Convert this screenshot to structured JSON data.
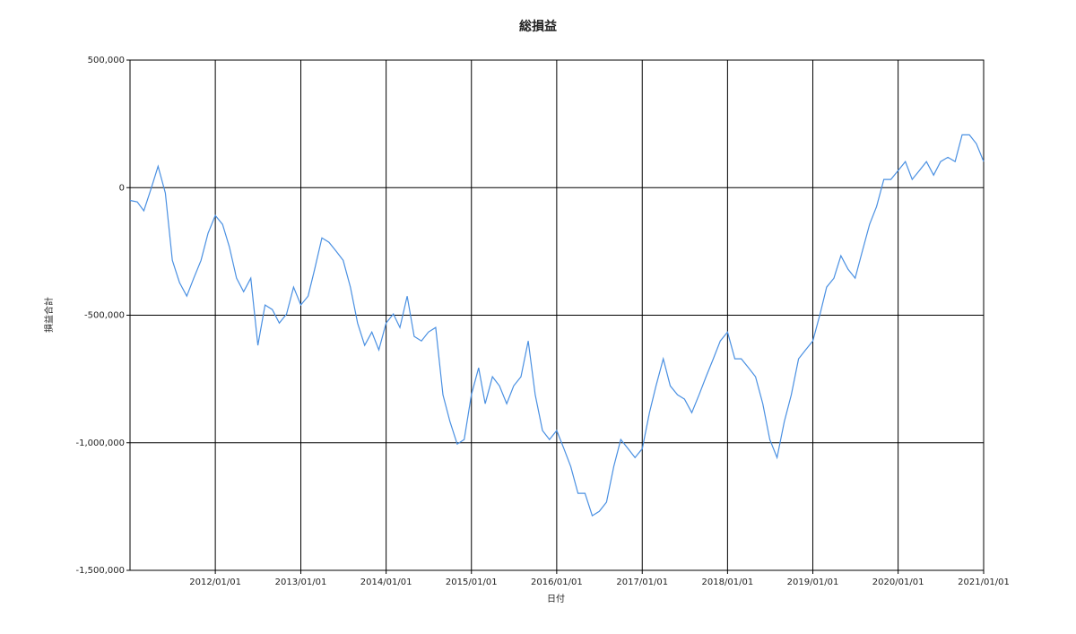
{
  "chart_data": {
    "type": "line",
    "title": "総損益",
    "x_label": "日付",
    "y_label": "損益合計",
    "xlim": [
      "2011/01/01",
      "2021/01/01"
    ],
    "xticks": [
      "2012/01/01",
      "2013/01/01",
      "2014/01/01",
      "2015/01/01",
      "2016/01/01",
      "2017/01/01",
      "2018/01/01",
      "2019/01/01",
      "2020/01/01",
      "2021/01/01"
    ],
    "ylim": [
      -1500000,
      500000
    ],
    "yticks": [
      {
        "value": -1500000,
        "label": "-1,500,000"
      },
      {
        "value": -1000000,
        "label": "-1,000,000"
      },
      {
        "value": -500000,
        "label": "-500,000"
      },
      0,
      {
        "value": 500000,
        "label": "500,000"
      }
    ],
    "grid": true,
    "x": [
      "2011/01/01",
      "2011/02/01",
      "2011/03/01",
      "2011/04/01",
      "2011/05/01",
      "2011/06/01",
      "2011/07/01",
      "2011/08/01",
      "2011/09/01",
      "2011/10/01",
      "2011/11/01",
      "2011/12/01",
      "2012/01/01",
      "2012/02/01",
      "2012/03/01",
      "2012/04/01",
      "2012/05/01",
      "2012/06/01",
      "2012/07/01",
      "2012/08/01",
      "2012/09/01",
      "2012/10/01",
      "2012/11/01",
      "2012/12/01",
      "2013/01/01",
      "2013/02/01",
      "2013/03/01",
      "2013/04/01",
      "2013/05/01",
      "2013/06/01",
      "2013/07/01",
      "2013/08/01",
      "2013/09/01",
      "2013/10/01",
      "2013/11/01",
      "2013/12/01",
      "2014/01/01",
      "2014/02/01",
      "2014/03/01",
      "2014/04/01",
      "2014/05/01",
      "2014/06/01",
      "2014/07/01",
      "2014/08/01",
      "2014/09/01",
      "2014/10/01",
      "2014/11/01",
      "2014/12/01",
      "2015/01/01",
      "2015/02/01",
      "2015/03/01",
      "2015/04/01",
      "2015/05/01",
      "2015/06/01",
      "2015/07/01",
      "2015/08/01",
      "2015/09/01",
      "2015/10/01",
      "2015/11/01",
      "2015/12/01",
      "2016/01/01",
      "2016/02/01",
      "2016/03/01",
      "2016/04/01",
      "2016/05/01",
      "2016/06/01",
      "2016/07/01",
      "2016/08/01",
      "2016/09/01",
      "2016/10/01",
      "2016/11/01",
      "2016/12/01",
      "2017/01/01",
      "2017/02/01",
      "2017/03/01",
      "2017/04/01",
      "2017/05/01",
      "2017/06/01",
      "2017/07/01",
      "2017/08/01",
      "2017/09/01",
      "2017/10/01",
      "2017/11/01",
      "2017/12/01",
      "2018/01/01",
      "2018/02/01",
      "2018/03/01",
      "2018/04/01",
      "2018/05/01",
      "2018/06/01",
      "2018/07/01",
      "2018/08/01",
      "2018/09/01",
      "2018/10/01",
      "2018/11/01",
      "2018/12/01",
      "2019/01/01",
      "2019/02/01",
      "2019/03/01",
      "2019/04/01",
      "2019/05/01",
      "2019/06/01",
      "2019/07/01",
      "2019/08/01",
      "2019/09/01",
      "2019/10/01",
      "2019/11/01",
      "2019/12/01",
      "2020/01/01",
      "2020/02/01",
      "2020/03/01",
      "2020/04/01",
      "2020/05/01",
      "2020/06/01",
      "2020/07/01",
      "2020/08/01",
      "2020/09/01",
      "2020/10/01",
      "2020/11/01",
      "2020/12/01",
      "2021/01/01"
    ],
    "series": [
      {
        "color": "#4a90e2",
        "values": [
          -50000,
          -56000,
          -91000,
          -4000,
          84000,
          -21000,
          -285000,
          -372000,
          -425000,
          -355000,
          -285000,
          -179000,
          -109000,
          -144000,
          -232000,
          -355000,
          -408000,
          -355000,
          -618000,
          -460000,
          -478000,
          -531000,
          -495000,
          -390000,
          -460000,
          -425000,
          -320000,
          -197000,
          -214000,
          -249000,
          -285000,
          -390000,
          -531000,
          -618000,
          -566000,
          -636000,
          -531000,
          -495000,
          -548000,
          -425000,
          -583000,
          -601000,
          -566000,
          -548000,
          -812000,
          -917000,
          -1005000,
          -987000,
          -812000,
          -706000,
          -847000,
          -741000,
          -777000,
          -847000,
          -777000,
          -741000,
          -601000,
          -812000,
          -952000,
          -987000,
          -952000,
          -1023000,
          -1093000,
          -1198000,
          -1198000,
          -1286000,
          -1269000,
          -1233000,
          -1093000,
          -987000,
          -1023000,
          -1058000,
          -1023000,
          -882000,
          -777000,
          -671000,
          -777000,
          -812000,
          -829000,
          -882000,
          -812000,
          -741000,
          -671000,
          -601000,
          -566000,
          -671000,
          -671000,
          -706000,
          -741000,
          -847000,
          -987000,
          -1058000,
          -917000,
          -812000,
          -671000,
          -636000,
          -601000,
          -495000,
          -390000,
          -355000,
          -267000,
          -320000,
          -355000,
          -249000,
          -144000,
          -74000,
          32000,
          32000,
          67000,
          102000,
          32000,
          67000,
          102000,
          49000,
          102000,
          119000,
          102000,
          207000,
          207000,
          172000,
          102000
        ]
      }
    ]
  }
}
